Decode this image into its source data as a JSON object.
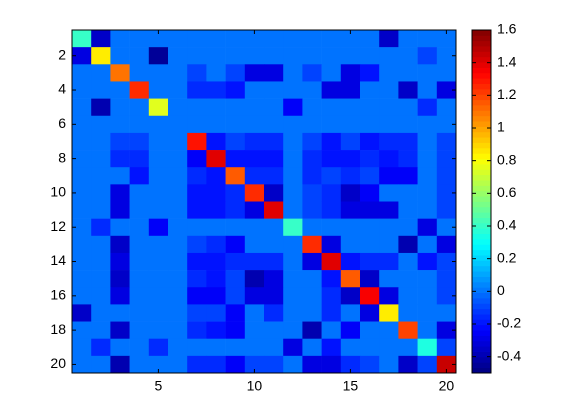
{
  "chart_data": {
    "type": "heatmap",
    "colormap": "jet",
    "xlim": [
      0.5,
      20.5
    ],
    "ylim": [
      0.5,
      20.5
    ],
    "y_reversed": true,
    "xticks": [
      5,
      10,
      15,
      20
    ],
    "yticks": [
      2,
      4,
      6,
      8,
      10,
      12,
      14,
      16,
      18,
      20
    ],
    "clim": [
      -0.5,
      1.6
    ],
    "colorbar_ticks": [
      -0.4,
      -0.2,
      0,
      0.2,
      0.4,
      0.6,
      0.8,
      1,
      1.2,
      1.4,
      1.6
    ],
    "z": [
      [
        0.4,
        -0.35,
        0,
        0,
        0,
        0,
        0,
        0,
        0,
        0,
        0,
        0,
        0,
        0,
        0,
        0,
        -0.35,
        0,
        0,
        0
      ],
      [
        -0.3,
        0.85,
        0,
        0,
        -0.45,
        0,
        0,
        0,
        0,
        0,
        0,
        0,
        0,
        0,
        0,
        0,
        0,
        0,
        -0.1,
        0
      ],
      [
        0,
        0,
        1.1,
        0,
        0,
        0,
        -0.1,
        0,
        -0.1,
        -0.3,
        -0.3,
        0,
        -0.1,
        0,
        -0.3,
        -0.2,
        0,
        0,
        0,
        0
      ],
      [
        0,
        0,
        0,
        1.25,
        0,
        0,
        -0.15,
        -0.15,
        -0.2,
        0,
        0,
        0,
        0,
        -0.3,
        -0.3,
        0,
        0,
        -0.35,
        0,
        -0.3
      ],
      [
        0,
        -0.4,
        0,
        0,
        0.75,
        0,
        0,
        0,
        0,
        0,
        0,
        -0.25,
        0,
        0,
        0,
        0,
        0,
        0,
        -0.15,
        0
      ],
      [
        0,
        0,
        0,
        0,
        0,
        0,
        0,
        0,
        0,
        0,
        0,
        0,
        0,
        0,
        0,
        0,
        0,
        0,
        0,
        0
      ],
      [
        0,
        0,
        -0.1,
        -0.1,
        0,
        0,
        1.3,
        -0.2,
        -0.1,
        -0.15,
        -0.15,
        0,
        -0.1,
        -0.2,
        -0.1,
        -0.2,
        -0.15,
        -0.15,
        0,
        -0.1
      ],
      [
        0,
        0,
        -0.15,
        -0.15,
        0,
        0,
        -0.25,
        1.4,
        -0.2,
        -0.2,
        -0.2,
        0,
        -0.15,
        -0.2,
        -0.2,
        -0.15,
        -0.2,
        -0.15,
        0,
        -0.1
      ],
      [
        0,
        0,
        0,
        -0.2,
        0,
        0,
        -0.15,
        -0.2,
        1.15,
        -0.15,
        -0.15,
        0,
        -0.15,
        -0.1,
        -0.15,
        -0.1,
        -0.25,
        -0.25,
        0,
        -0.1
      ],
      [
        0,
        0,
        -0.3,
        0,
        0,
        0,
        -0.2,
        -0.2,
        -0.15,
        1.25,
        -0.35,
        0,
        -0.1,
        -0.15,
        -0.35,
        -0.25,
        0,
        0,
        0,
        -0.1
      ],
      [
        0,
        0,
        -0.3,
        0,
        0,
        0,
        -0.2,
        -0.2,
        -0.15,
        -0.3,
        1.4,
        0,
        -0.1,
        -0.15,
        -0.3,
        -0.3,
        -0.3,
        0,
        0,
        -0.1
      ],
      [
        0,
        -0.15,
        0,
        0,
        -0.25,
        0,
        0,
        0,
        0,
        0,
        0,
        0.4,
        0,
        0,
        0,
        0,
        0,
        0,
        -0.3,
        0
      ],
      [
        0,
        0,
        -0.35,
        0,
        0,
        0,
        -0.1,
        -0.15,
        -0.25,
        0,
        0,
        0,
        1.25,
        -0.3,
        0,
        0,
        0,
        -0.4,
        0,
        -0.3
      ],
      [
        0,
        0,
        -0.3,
        0,
        0,
        0,
        -0.2,
        -0.2,
        -0.15,
        -0.15,
        -0.15,
        0,
        -0.3,
        1.4,
        -0.2,
        -0.15,
        -0.15,
        0,
        -0.2,
        -0.1
      ],
      [
        0,
        0,
        -0.35,
        0,
        0,
        0,
        -0.15,
        -0.2,
        -0.1,
        -0.4,
        -0.3,
        0,
        0,
        -0.2,
        1.15,
        -0.35,
        0,
        0,
        0,
        -0.1
      ],
      [
        0,
        0,
        -0.3,
        0,
        0,
        0,
        -0.25,
        -0.25,
        -0.1,
        -0.3,
        -0.3,
        0,
        0,
        -0.15,
        -0.35,
        1.35,
        -0.3,
        0,
        0,
        -0.1
      ],
      [
        -0.35,
        0,
        0,
        0,
        0,
        0,
        -0.1,
        -0.1,
        -0.25,
        0,
        -0.15,
        0,
        0,
        -0.15,
        0,
        -0.3,
        0.85,
        0,
        0,
        0
      ],
      [
        0,
        0,
        -0.35,
        0,
        0,
        0,
        -0.15,
        -0.2,
        -0.25,
        0,
        0,
        0,
        -0.4,
        0,
        -0.25,
        0,
        0,
        1.2,
        0,
        -0.3
      ],
      [
        0,
        -0.15,
        0,
        0,
        -0.15,
        0,
        0,
        0,
        0,
        0,
        0,
        -0.3,
        0,
        -0.2,
        0,
        0,
        0,
        0,
        0.35,
        -0.1
      ],
      [
        0,
        0,
        -0.4,
        0,
        0,
        0,
        -0.15,
        -0.15,
        -0.25,
        -0.1,
        -0.1,
        0,
        -0.3,
        -0.3,
        -0.15,
        -0.1,
        0,
        -0.35,
        -0.1,
        1.45
      ]
    ]
  }
}
